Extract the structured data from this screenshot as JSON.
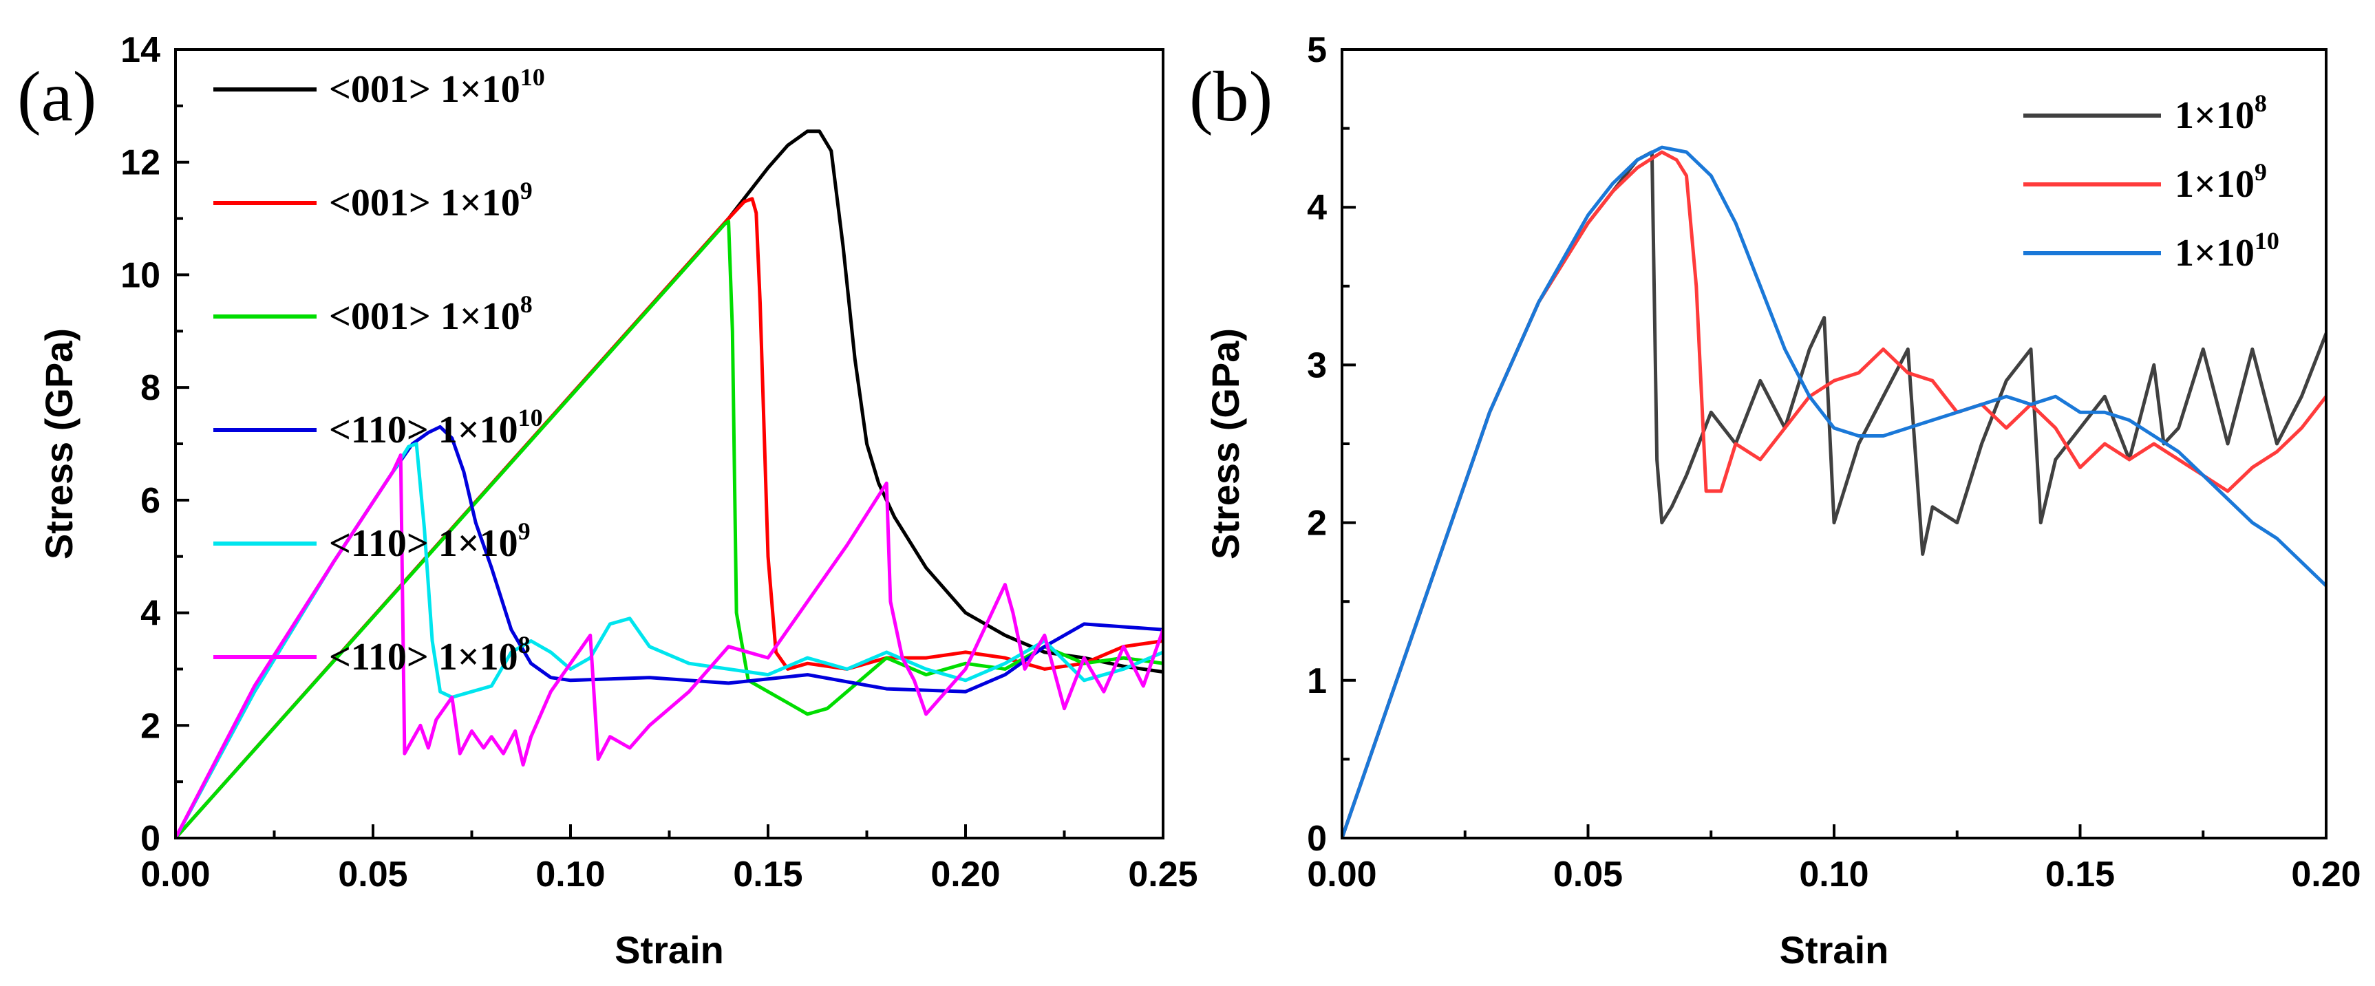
{
  "chart_data": [
    {
      "panel_label": "(a)",
      "type": "line",
      "xlabel": "Strain",
      "ylabel": "Stress (GPa)",
      "xlim": [
        0,
        0.25
      ],
      "ylim": [
        0,
        14
      ],
      "xticks": [
        "0.00",
        "0.05",
        "0.10",
        "0.15",
        "0.20",
        "0.25"
      ],
      "yticks": [
        "0",
        "2",
        "4",
        "6",
        "8",
        "10",
        "12",
        "14"
      ],
      "legend_position": "top-left",
      "series": [
        {
          "name": "<001> 1×10",
          "name_sup": "10",
          "color": "#000000",
          "x": [
            0,
            0.14,
            0.15,
            0.155,
            0.16,
            0.163,
            0.166,
            0.169,
            0.172,
            0.175,
            0.178,
            0.182,
            0.19,
            0.2,
            0.21,
            0.22,
            0.23,
            0.24,
            0.25
          ],
          "y": [
            0,
            11.0,
            11.9,
            12.3,
            12.55,
            12.55,
            12.2,
            10.5,
            8.5,
            7.0,
            6.3,
            5.7,
            4.8,
            4.0,
            3.6,
            3.3,
            3.2,
            3.05,
            2.95
          ]
        },
        {
          "name": "<001> 1×10",
          "name_sup": "9",
          "color": "#ff0000",
          "x": [
            0,
            0.14,
            0.144,
            0.146,
            0.147,
            0.148,
            0.15,
            0.152,
            0.155,
            0.16,
            0.17,
            0.18,
            0.19,
            0.2,
            0.21,
            0.22,
            0.23,
            0.24,
            0.25
          ],
          "y": [
            0,
            11.0,
            11.3,
            11.35,
            11.1,
            9.5,
            5.0,
            3.3,
            3.0,
            3.1,
            3.0,
            3.2,
            3.2,
            3.3,
            3.2,
            3.0,
            3.1,
            3.4,
            3.5
          ]
        },
        {
          "name": "<001> 1×10",
          "name_sup": "8",
          "color": "#00dd00",
          "x": [
            0,
            0.139,
            0.14,
            0.141,
            0.142,
            0.145,
            0.15,
            0.155,
            0.16,
            0.165,
            0.17,
            0.18,
            0.19,
            0.2,
            0.21,
            0.22,
            0.23,
            0.24,
            0.25
          ],
          "y": [
            0,
            10.9,
            10.95,
            9.0,
            4.0,
            2.8,
            2.6,
            2.4,
            2.2,
            2.3,
            2.6,
            3.2,
            2.9,
            3.1,
            3.0,
            3.4,
            3.1,
            3.2,
            3.1
          ]
        },
        {
          "name": "<110> 1×10",
          "name_sup": "10",
          "color": "#0000dd",
          "x": [
            0,
            0.02,
            0.04,
            0.055,
            0.06,
            0.064,
            0.067,
            0.07,
            0.073,
            0.076,
            0.08,
            0.085,
            0.09,
            0.095,
            0.1,
            0.12,
            0.14,
            0.16,
            0.18,
            0.2,
            0.21,
            0.22,
            0.23,
            0.24,
            0.25
          ],
          "y": [
            0,
            2.6,
            4.9,
            6.5,
            7.0,
            7.2,
            7.3,
            7.1,
            6.5,
            5.6,
            4.8,
            3.7,
            3.1,
            2.85,
            2.8,
            2.85,
            2.75,
            2.9,
            2.65,
            2.6,
            2.9,
            3.4,
            3.8,
            3.75,
            3.7
          ]
        },
        {
          "name": "<110> 1×10",
          "name_sup": "9",
          "color": "#00e5ee",
          "x": [
            0,
            0.02,
            0.04,
            0.055,
            0.059,
            0.061,
            0.063,
            0.065,
            0.067,
            0.07,
            0.075,
            0.08,
            0.085,
            0.09,
            0.095,
            0.1,
            0.105,
            0.11,
            0.115,
            0.12,
            0.13,
            0.14,
            0.15,
            0.16,
            0.17,
            0.18,
            0.19,
            0.2,
            0.21,
            0.22,
            0.23,
            0.24,
            0.25
          ],
          "y": [
            0,
            2.6,
            4.9,
            6.5,
            6.95,
            7.0,
            5.5,
            3.5,
            2.6,
            2.5,
            2.6,
            2.7,
            3.3,
            3.5,
            3.3,
            3.0,
            3.2,
            3.8,
            3.9,
            3.4,
            3.1,
            3.0,
            2.9,
            3.2,
            3.0,
            3.3,
            3.0,
            2.8,
            3.1,
            3.5,
            2.8,
            3.0,
            3.3
          ]
        },
        {
          "name": "<110> 1×10",
          "name_sup": "8",
          "color": "#ff00ff",
          "x": [
            0,
            0.02,
            0.04,
            0.055,
            0.057,
            0.058,
            0.062,
            0.064,
            0.066,
            0.07,
            0.072,
            0.075,
            0.078,
            0.08,
            0.083,
            0.086,
            0.088,
            0.09,
            0.095,
            0.1,
            0.105,
            0.107,
            0.11,
            0.115,
            0.12,
            0.13,
            0.14,
            0.15,
            0.16,
            0.17,
            0.18,
            0.181,
            0.184,
            0.187,
            0.19,
            0.2,
            0.21,
            0.212,
            0.215,
            0.22,
            0.225,
            0.23,
            0.235,
            0.24,
            0.245,
            0.25
          ],
          "y": [
            0,
            2.7,
            4.9,
            6.5,
            6.8,
            1.5,
            2.0,
            1.6,
            2.1,
            2.5,
            1.5,
            1.9,
            1.6,
            1.8,
            1.5,
            1.9,
            1.3,
            1.8,
            2.6,
            3.1,
            3.6,
            1.4,
            1.8,
            1.6,
            2.0,
            2.6,
            3.4,
            3.2,
            4.2,
            5.2,
            6.3,
            4.2,
            3.2,
            2.8,
            2.2,
            3.0,
            4.5,
            4.0,
            3.0,
            3.6,
            2.3,
            3.2,
            2.6,
            3.4,
            2.7,
            3.7
          ]
        }
      ]
    },
    {
      "panel_label": "(b)",
      "type": "line",
      "xlabel": "Strain",
      "ylabel": "Stress (GPa)",
      "xlim": [
        0,
        0.2
      ],
      "ylim": [
        0,
        5
      ],
      "xticks": [
        "0.00",
        "0.05",
        "0.10",
        "0.15",
        "0.20"
      ],
      "yticks": [
        "0",
        "1",
        "2",
        "3",
        "4",
        "5"
      ],
      "legend_position": "top-right",
      "series": [
        {
          "name": "1×10",
          "name_sup": "8",
          "color": "#404040",
          "x": [
            0,
            0.01,
            0.02,
            0.03,
            0.04,
            0.05,
            0.055,
            0.06,
            0.063,
            0.064,
            0.065,
            0.067,
            0.07,
            0.075,
            0.08,
            0.085,
            0.09,
            0.095,
            0.098,
            0.1,
            0.105,
            0.11,
            0.115,
            0.118,
            0.12,
            0.125,
            0.13,
            0.135,
            0.14,
            0.142,
            0.145,
            0.15,
            0.155,
            0.16,
            0.165,
            0.167,
            0.17,
            0.175,
            0.18,
            0.185,
            0.19,
            0.195,
            0.2
          ],
          "y": [
            0,
            0.9,
            1.8,
            2.7,
            3.4,
            3.9,
            4.1,
            4.3,
            4.35,
            2.4,
            2.0,
            2.1,
            2.3,
            2.7,
            2.5,
            2.9,
            2.6,
            3.1,
            3.3,
            2.0,
            2.5,
            2.8,
            3.1,
            1.8,
            2.1,
            2.0,
            2.5,
            2.9,
            3.1,
            2.0,
            2.4,
            2.6,
            2.8,
            2.4,
            3.0,
            2.5,
            2.6,
            3.1,
            2.5,
            3.1,
            2.5,
            2.8,
            3.2
          ]
        },
        {
          "name": "1×10",
          "name_sup": "9",
          "color": "#ff3b3b",
          "x": [
            0,
            0.01,
            0.02,
            0.03,
            0.04,
            0.05,
            0.055,
            0.06,
            0.065,
            0.068,
            0.07,
            0.072,
            0.074,
            0.077,
            0.08,
            0.085,
            0.09,
            0.095,
            0.1,
            0.105,
            0.11,
            0.115,
            0.12,
            0.125,
            0.13,
            0.135,
            0.14,
            0.145,
            0.15,
            0.155,
            0.16,
            0.165,
            0.17,
            0.175,
            0.18,
            0.185,
            0.19,
            0.195,
            0.2
          ],
          "y": [
            0,
            0.9,
            1.8,
            2.7,
            3.4,
            3.9,
            4.1,
            4.25,
            4.35,
            4.3,
            4.2,
            3.5,
            2.2,
            2.2,
            2.5,
            2.4,
            2.6,
            2.8,
            2.9,
            2.95,
            3.1,
            2.95,
            2.9,
            2.7,
            2.75,
            2.6,
            2.75,
            2.6,
            2.35,
            2.5,
            2.4,
            2.5,
            2.4,
            2.3,
            2.2,
            2.35,
            2.45,
            2.6,
            2.8
          ]
        },
        {
          "name": "1×10",
          "name_sup": "10",
          "color": "#1a78d8",
          "x": [
            0,
            0.01,
            0.02,
            0.03,
            0.04,
            0.05,
            0.055,
            0.06,
            0.065,
            0.07,
            0.075,
            0.08,
            0.085,
            0.09,
            0.095,
            0.1,
            0.105,
            0.11,
            0.115,
            0.12,
            0.125,
            0.13,
            0.135,
            0.14,
            0.145,
            0.15,
            0.155,
            0.16,
            0.165,
            0.17,
            0.175,
            0.18,
            0.185,
            0.19,
            0.195,
            0.2
          ],
          "y": [
            0,
            0.9,
            1.8,
            2.7,
            3.4,
            3.95,
            4.15,
            4.3,
            4.38,
            4.35,
            4.2,
            3.9,
            3.5,
            3.1,
            2.8,
            2.6,
            2.55,
            2.55,
            2.6,
            2.65,
            2.7,
            2.75,
            2.8,
            2.75,
            2.8,
            2.7,
            2.7,
            2.65,
            2.55,
            2.45,
            2.3,
            2.15,
            2.0,
            1.9,
            1.75,
            1.6
          ]
        }
      ]
    }
  ]
}
